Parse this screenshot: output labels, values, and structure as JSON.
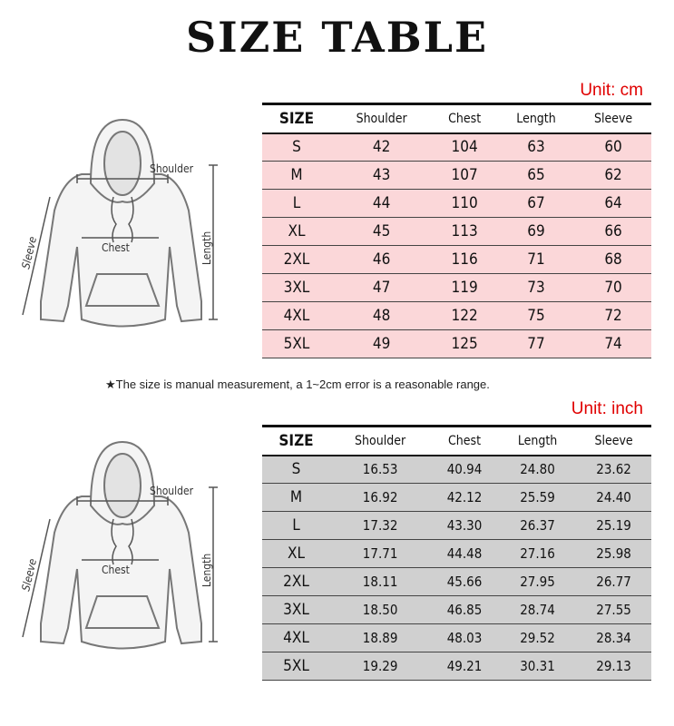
{
  "title": "SIZE TABLE",
  "note": "★The size is manual measurement, a 1~2cm error is a reasonable range.",
  "diagram_labels": {
    "shoulder": "Shoulder",
    "chest": "Chest",
    "length": "Length",
    "sleeve": "Sleeve"
  },
  "columns": [
    "SIZE",
    "Shoulder",
    "Chest",
    "Length",
    "Sleeve"
  ],
  "cm": {
    "unit": "Unit: cm",
    "row_color": "#fbd7d9",
    "rows": [
      [
        "S",
        "42",
        "104",
        "63",
        "60"
      ],
      [
        "M",
        "43",
        "107",
        "65",
        "62"
      ],
      [
        "L",
        "44",
        "110",
        "67",
        "64"
      ],
      [
        "XL",
        "45",
        "113",
        "69",
        "66"
      ],
      [
        "2XL",
        "46",
        "116",
        "71",
        "68"
      ],
      [
        "3XL",
        "47",
        "119",
        "73",
        "70"
      ],
      [
        "4XL",
        "48",
        "122",
        "75",
        "72"
      ],
      [
        "5XL",
        "49",
        "125",
        "77",
        "74"
      ]
    ]
  },
  "inch": {
    "unit": "Unit: inch",
    "row_color": "#d0d0d0",
    "rows": [
      [
        "S",
        "16.53",
        "40.94",
        "24.80",
        "23.62"
      ],
      [
        "M",
        "16.92",
        "42.12",
        "25.59",
        "24.40"
      ],
      [
        "L",
        "17.32",
        "43.30",
        "26.37",
        "25.19"
      ],
      [
        "XL",
        "17.71",
        "44.48",
        "27.16",
        "25.98"
      ],
      [
        "2XL",
        "18.11",
        "45.66",
        "27.95",
        "26.77"
      ],
      [
        "3XL",
        "18.50",
        "46.85",
        "28.74",
        "27.55"
      ],
      [
        "4XL",
        "18.89",
        "48.03",
        "29.52",
        "28.34"
      ],
      [
        "5XL",
        "19.29",
        "49.21",
        "30.31",
        "29.13"
      ]
    ]
  }
}
